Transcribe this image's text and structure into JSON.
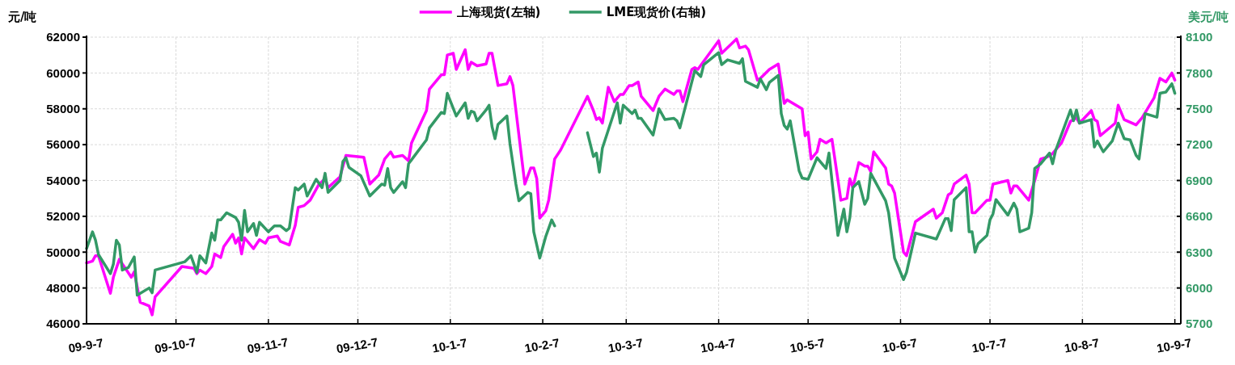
{
  "chart_data": {
    "type": "line",
    "ylabel": "元/吨",
    "y2label": "美元/吨",
    "legend": "top",
    "grid": true,
    "xlim": [
      "2009-09-07",
      "2010-09-09"
    ],
    "xticks": [
      {
        "value": "2009-09-07",
        "label": "09-9-7"
      },
      {
        "value": "2009-10-07",
        "label": "09-10-7"
      },
      {
        "value": "2009-11-07",
        "label": "09-11-7"
      },
      {
        "value": "2009-12-07",
        "label": "09-12-7"
      },
      {
        "value": "2010-01-07",
        "label": "10-1-7"
      },
      {
        "value": "2010-02-07",
        "label": "10-2-7"
      },
      {
        "value": "2010-03-07",
        "label": "10-3-7"
      },
      {
        "value": "2010-04-07",
        "label": "10-4-7"
      },
      {
        "value": "2010-05-07",
        "label": "10-5-7"
      },
      {
        "value": "2010-06-07",
        "label": "10-6-7"
      },
      {
        "value": "2010-07-07",
        "label": "10-7-7"
      },
      {
        "value": "2010-08-07",
        "label": "10-8-7"
      },
      {
        "value": "2010-09-07",
        "label": "10-9-7"
      }
    ],
    "ylim": [
      46000,
      62000
    ],
    "yticks": [
      46000,
      48000,
      50000,
      52000,
      54000,
      56000,
      58000,
      60000,
      62000
    ],
    "y2lim": [
      5700,
      8100
    ],
    "y2ticks": [
      5700,
      6000,
      6300,
      6600,
      6900,
      7200,
      7500,
      7800,
      8100
    ],
    "series": [
      {
        "name": "上海现货(左轴)",
        "color": "#ff00ff",
        "x": [
          "2009-09-07",
          "2009-09-09",
          "2009-09-10",
          "2009-09-11",
          "2009-09-15",
          "2009-09-16",
          "2009-09-18",
          "2009-09-22",
          "2009-09-23",
          "2009-09-25",
          "2009-09-28",
          "2009-09-29",
          "2009-09-30",
          "2009-10-09",
          "2009-10-13",
          "2009-10-14",
          "2009-10-15",
          "2009-10-17",
          "2009-10-19",
          "2009-10-20",
          "2009-10-22",
          "2009-10-23",
          "2009-10-26",
          "2009-10-27",
          "2009-10-28",
          "2009-10-29",
          "2009-10-30",
          "2009-11-02",
          "2009-11-04",
          "2009-11-06",
          "2009-11-07",
          "2009-11-10",
          "2009-11-11",
          "2009-11-14",
          "2009-11-16",
          "2009-11-17",
          "2009-11-19",
          "2009-11-21",
          "2009-11-24",
          "2009-11-26",
          "2009-11-27",
          "2009-12-01",
          "2009-12-03",
          "2009-12-09",
          "2009-12-11",
          "2009-12-14",
          "2009-12-16",
          "2009-12-18",
          "2009-12-19",
          "2009-12-22",
          "2009-12-24",
          "2009-12-25",
          "2009-12-30",
          "2009-12-31",
          "2010-01-04",
          "2010-01-05",
          "2010-01-06",
          "2010-01-08",
          "2010-01-09",
          "2010-01-12",
          "2010-01-13",
          "2010-01-14",
          "2010-01-16",
          "2010-01-19",
          "2010-01-20",
          "2010-01-21",
          "2010-01-23",
          "2010-01-26",
          "2010-01-27",
          "2010-01-28",
          "2010-02-01",
          "2010-02-03",
          "2010-02-04",
          "2010-02-05",
          "2010-02-06",
          "2010-02-08",
          "2010-02-09",
          "2010-02-11",
          "2010-02-13",
          "2010-02-22",
          "2010-02-24",
          "2010-02-25",
          "2010-02-26",
          "2010-02-27",
          "2010-03-01",
          "2010-03-03",
          "2010-03-05",
          "2010-03-06",
          "2010-03-08",
          "2010-03-09",
          "2010-03-11",
          "2010-03-12",
          "2010-03-16",
          "2010-03-18",
          "2010-03-20",
          "2010-03-23",
          "2010-03-24",
          "2010-03-25",
          "2010-03-26",
          "2010-03-29",
          "2010-03-30",
          "2010-03-31",
          "2010-04-07",
          "2010-04-08",
          "2010-04-13",
          "2010-04-14",
          "2010-04-16",
          "2010-04-17",
          "2010-04-20",
          "2010-04-21",
          "2010-04-24",
          "2010-04-27",
          "2010-04-29",
          "2010-04-30",
          "2010-05-05",
          "2010-05-06",
          "2010-05-07",
          "2010-05-08",
          "2010-05-10",
          "2010-05-11",
          "2010-05-13",
          "2010-05-15",
          "2010-05-18",
          "2010-05-20",
          "2010-05-21",
          "2010-05-22",
          "2010-05-24",
          "2010-05-26",
          "2010-05-27",
          "2010-05-28",
          "2010-05-29",
          "2010-06-02",
          "2010-06-03",
          "2010-06-04",
          "2010-06-05",
          "2010-06-08",
          "2010-06-09",
          "2010-06-12",
          "2010-06-18",
          "2010-06-19",
          "2010-06-21",
          "2010-06-23",
          "2010-06-24",
          "2010-06-25",
          "2010-06-29",
          "2010-06-30",
          "2010-07-01",
          "2010-07-02",
          "2010-07-06",
          "2010-07-07",
          "2010-07-08",
          "2010-07-13",
          "2010-07-14",
          "2010-07-15",
          "2010-07-16",
          "2010-07-20",
          "2010-07-22",
          "2010-07-24",
          "2010-07-26",
          "2010-07-28",
          "2010-07-31",
          "2010-08-03",
          "2010-08-05",
          "2010-08-06",
          "2010-08-10",
          "2010-08-11",
          "2010-08-12",
          "2010-08-13",
          "2010-08-18",
          "2010-08-19",
          "2010-08-21",
          "2010-08-25",
          "2010-08-27",
          "2010-08-31",
          "2010-09-02",
          "2010-09-04",
          "2010-09-06",
          "2010-09-07"
        ],
        "values": [
          49400,
          49500,
          49800,
          49800,
          47700,
          48600,
          49600,
          48600,
          48900,
          47200,
          47000,
          46500,
          47500,
          49200,
          49100,
          48800,
          49000,
          48800,
          49200,
          49900,
          49700,
          50300,
          51000,
          50500,
          50800,
          49900,
          50800,
          50200,
          50700,
          50500,
          50800,
          50900,
          50600,
          50400,
          51500,
          52500,
          52600,
          52900,
          53800,
          54100,
          53600,
          54200,
          55400,
          55300,
          53800,
          54300,
          55200,
          55600,
          55300,
          55400,
          55100,
          56100,
          57900,
          59100,
          59900,
          59900,
          61000,
          61100,
          60200,
          61300,
          60200,
          60600,
          60400,
          60500,
          61100,
          61100,
          59300,
          59400,
          59800,
          59300,
          53800,
          54700,
          54700,
          54100,
          51900,
          52300,
          52900,
          55200,
          55700,
          58700,
          57900,
          57400,
          57500,
          57200,
          59200,
          58400,
          58800,
          58800,
          59300,
          59300,
          59500,
          58700,
          57900,
          58700,
          59100,
          58800,
          59000,
          59000,
          58400,
          60200,
          60300,
          60200,
          61800,
          61100,
          61900,
          61400,
          61500,
          61300,
          59600,
          59700,
          60200,
          60500,
          58300,
          58500,
          58000,
          56500,
          56700,
          55200,
          55600,
          56300,
          56100,
          56300,
          52900,
          53000,
          54100,
          53600,
          55000,
          54800,
          54800,
          54500,
          55600,
          54700,
          53800,
          53700,
          53300,
          50000,
          49800,
          51700,
          52400,
          51900,
          52200,
          53200,
          53300,
          53800,
          54300,
          53800,
          52200,
          52200,
          52900,
          52900,
          53800,
          54000,
          53300,
          53700,
          53700,
          52900,
          54000,
          55200,
          55300,
          55500,
          56100,
          57300,
          57500,
          57200,
          57900,
          57400,
          57300,
          56500,
          57200,
          58200,
          57400,
          57100,
          57500,
          58600,
          59700,
          59500,
          60000,
          59600
        ]
      },
      {
        "name": "LME现货价(右轴)",
        "color": "#339966",
        "axis": "y2",
        "x": [
          "2009-09-07",
          "2009-09-09",
          "2009-09-10",
          "2009-09-11",
          "2009-09-15",
          "2009-09-16",
          "2009-09-17",
          "2009-09-18",
          "2009-09-19",
          "2009-09-21",
          "2009-09-23",
          "2009-09-24",
          "2009-09-28",
          "2009-09-29",
          "2009-09-30",
          "2009-10-10",
          "2009-10-12",
          "2009-10-14",
          "2009-10-15",
          "2009-10-17",
          "2009-10-19",
          "2009-10-20",
          "2009-10-21",
          "2009-10-22",
          "2009-10-24",
          "2009-10-27",
          "2009-10-28",
          "2009-10-29",
          "2009-10-30",
          "2009-10-31",
          "2009-11-02",
          "2009-11-03",
          "2009-11-04",
          "2009-11-07",
          "2009-11-09",
          "2009-11-10",
          "2009-11-11",
          "2009-11-13",
          "2009-11-14",
          "2009-11-16",
          "2009-11-17",
          "2009-11-19",
          "2009-11-20",
          "2009-11-23",
          "2009-11-25",
          "2009-11-26",
          "2009-11-27",
          "2009-12-01",
          "2009-12-02",
          "2009-12-03",
          "2009-12-04",
          "2009-12-08",
          "2009-12-11",
          "2009-12-15",
          "2009-12-16",
          "2009-12-17",
          "2009-12-18",
          "2009-12-19",
          "2009-12-22",
          "2009-12-23",
          "2009-12-24",
          "2009-12-30",
          "2009-12-31",
          "2010-01-04",
          "2010-01-05",
          "2010-01-06",
          "2010-01-09",
          "2010-01-12",
          "2010-01-13",
          "2010-01-14",
          "2010-01-15",
          "2010-01-16",
          "2010-01-19",
          "2010-01-20",
          "2010-01-21",
          "2010-01-22",
          "2010-01-23",
          "2010-01-26",
          "2010-01-27",
          "2010-01-29",
          "2010-01-30",
          "2010-02-02",
          "2010-02-03",
          "2010-02-04",
          "2010-02-06",
          "2010-02-08",
          "2010-02-10",
          "2010-02-11",
          "2010-02-16",
          "2010-02-22",
          "2010-02-24",
          "2010-02-25",
          "2010-02-26",
          "2010-02-27",
          "2010-03-04",
          "2010-03-05",
          "2010-03-06",
          "2010-03-09",
          "2010-03-10",
          "2010-03-11",
          "2010-03-12",
          "2010-03-16",
          "2010-03-18",
          "2010-03-20",
          "2010-03-23",
          "2010-03-24",
          "2010-03-25",
          "2010-03-30",
          "2010-04-01",
          "2010-04-02",
          "2010-04-07",
          "2010-04-08",
          "2010-04-10",
          "2010-04-14",
          "2010-04-15",
          "2010-04-16",
          "2010-04-20",
          "2010-04-21",
          "2010-04-23",
          "2010-04-24",
          "2010-04-27",
          "2010-04-28",
          "2010-04-29",
          "2010-04-30",
          "2010-05-01",
          "2010-05-04",
          "2010-05-05",
          "2010-05-07",
          "2010-05-10",
          "2010-05-13",
          "2010-05-14",
          "2010-05-17",
          "2010-05-19",
          "2010-05-20",
          "2010-05-21",
          "2010-05-22",
          "2010-05-24",
          "2010-05-26",
          "2010-05-27",
          "2010-05-28",
          "2010-06-02",
          "2010-06-03",
          "2010-06-05",
          "2010-06-08",
          "2010-06-09",
          "2010-06-12",
          "2010-06-19",
          "2010-06-22",
          "2010-06-23",
          "2010-06-24",
          "2010-06-25",
          "2010-06-29",
          "2010-06-30",
          "2010-07-01",
          "2010-07-02",
          "2010-07-03",
          "2010-07-06",
          "2010-07-07",
          "2010-07-08",
          "2010-07-09",
          "2010-07-13",
          "2010-07-15",
          "2010-07-16",
          "2010-07-17",
          "2010-07-20",
          "2010-07-21",
          "2010-07-22",
          "2010-07-24",
          "2010-07-27",
          "2010-07-28",
          "2010-07-29",
          "2010-08-03",
          "2010-08-04",
          "2010-08-05",
          "2010-08-06",
          "2010-08-10",
          "2010-08-11",
          "2010-08-12",
          "2010-08-14",
          "2010-08-17",
          "2010-08-19",
          "2010-08-21",
          "2010-08-23",
          "2010-08-25",
          "2010-08-26",
          "2010-08-28",
          "2010-09-01",
          "2010-09-02",
          "2010-09-04",
          "2010-09-06",
          "2010-09-07"
        ],
        "values": [
          6330,
          6470,
          6400,
          6280,
          6120,
          6200,
          6400,
          6360,
          6150,
          6170,
          6260,
          5940,
          6000,
          5960,
          6150,
          6220,
          6270,
          6130,
          6270,
          6210,
          6460,
          6400,
          6570,
          6570,
          6630,
          6590,
          6550,
          6400,
          6650,
          6470,
          6540,
          6440,
          6550,
          6470,
          6520,
          6520,
          6520,
          6480,
          6500,
          6840,
          6820,
          6870,
          6770,
          6910,
          6840,
          6960,
          6800,
          6900,
          7060,
          7090,
          7010,
          6940,
          6770,
          6870,
          6860,
          7000,
          6840,
          6800,
          6890,
          6840,
          7040,
          7240,
          7340,
          7470,
          7460,
          7630,
          7440,
          7550,
          7420,
          7480,
          7470,
          7400,
          7490,
          7530,
          7350,
          7250,
          7370,
          7440,
          7210,
          6870,
          6730,
          6800,
          6790,
          6470,
          6250,
          6430,
          6570,
          6520,
          null,
          7300,
          7100,
          7130,
          6970,
          7170,
          7550,
          7380,
          7530,
          7460,
          7490,
          7420,
          7420,
          7280,
          7500,
          7410,
          7420,
          7400,
          7340,
          7820,
          7770,
          7870,
          7970,
          7870,
          7910,
          7880,
          7920,
          7730,
          7680,
          7750,
          7660,
          7720,
          7780,
          7460,
          7360,
          7330,
          7400,
          6980,
          6920,
          6910,
          7090,
          7000,
          7130,
          6440,
          6660,
          6470,
          6590,
          6840,
          6890,
          6700,
          6750,
          6960,
          6730,
          6630,
          6250,
          6070,
          6130,
          6460,
          6410,
          6580,
          6580,
          6480,
          6740,
          6840,
          6470,
          6470,
          6300,
          6370,
          6440,
          6570,
          6620,
          6740,
          6610,
          6710,
          6660,
          6470,
          6500,
          6630,
          7000,
          7040,
          7130,
          7040,
          7150,
          7490,
          7400,
          7490,
          7380,
          7410,
          7180,
          7230,
          7140,
          7230,
          7380,
          7250,
          7240,
          7110,
          7080,
          7460,
          7430,
          7630,
          7640,
          7710,
          7630
        ]
      }
    ]
  }
}
